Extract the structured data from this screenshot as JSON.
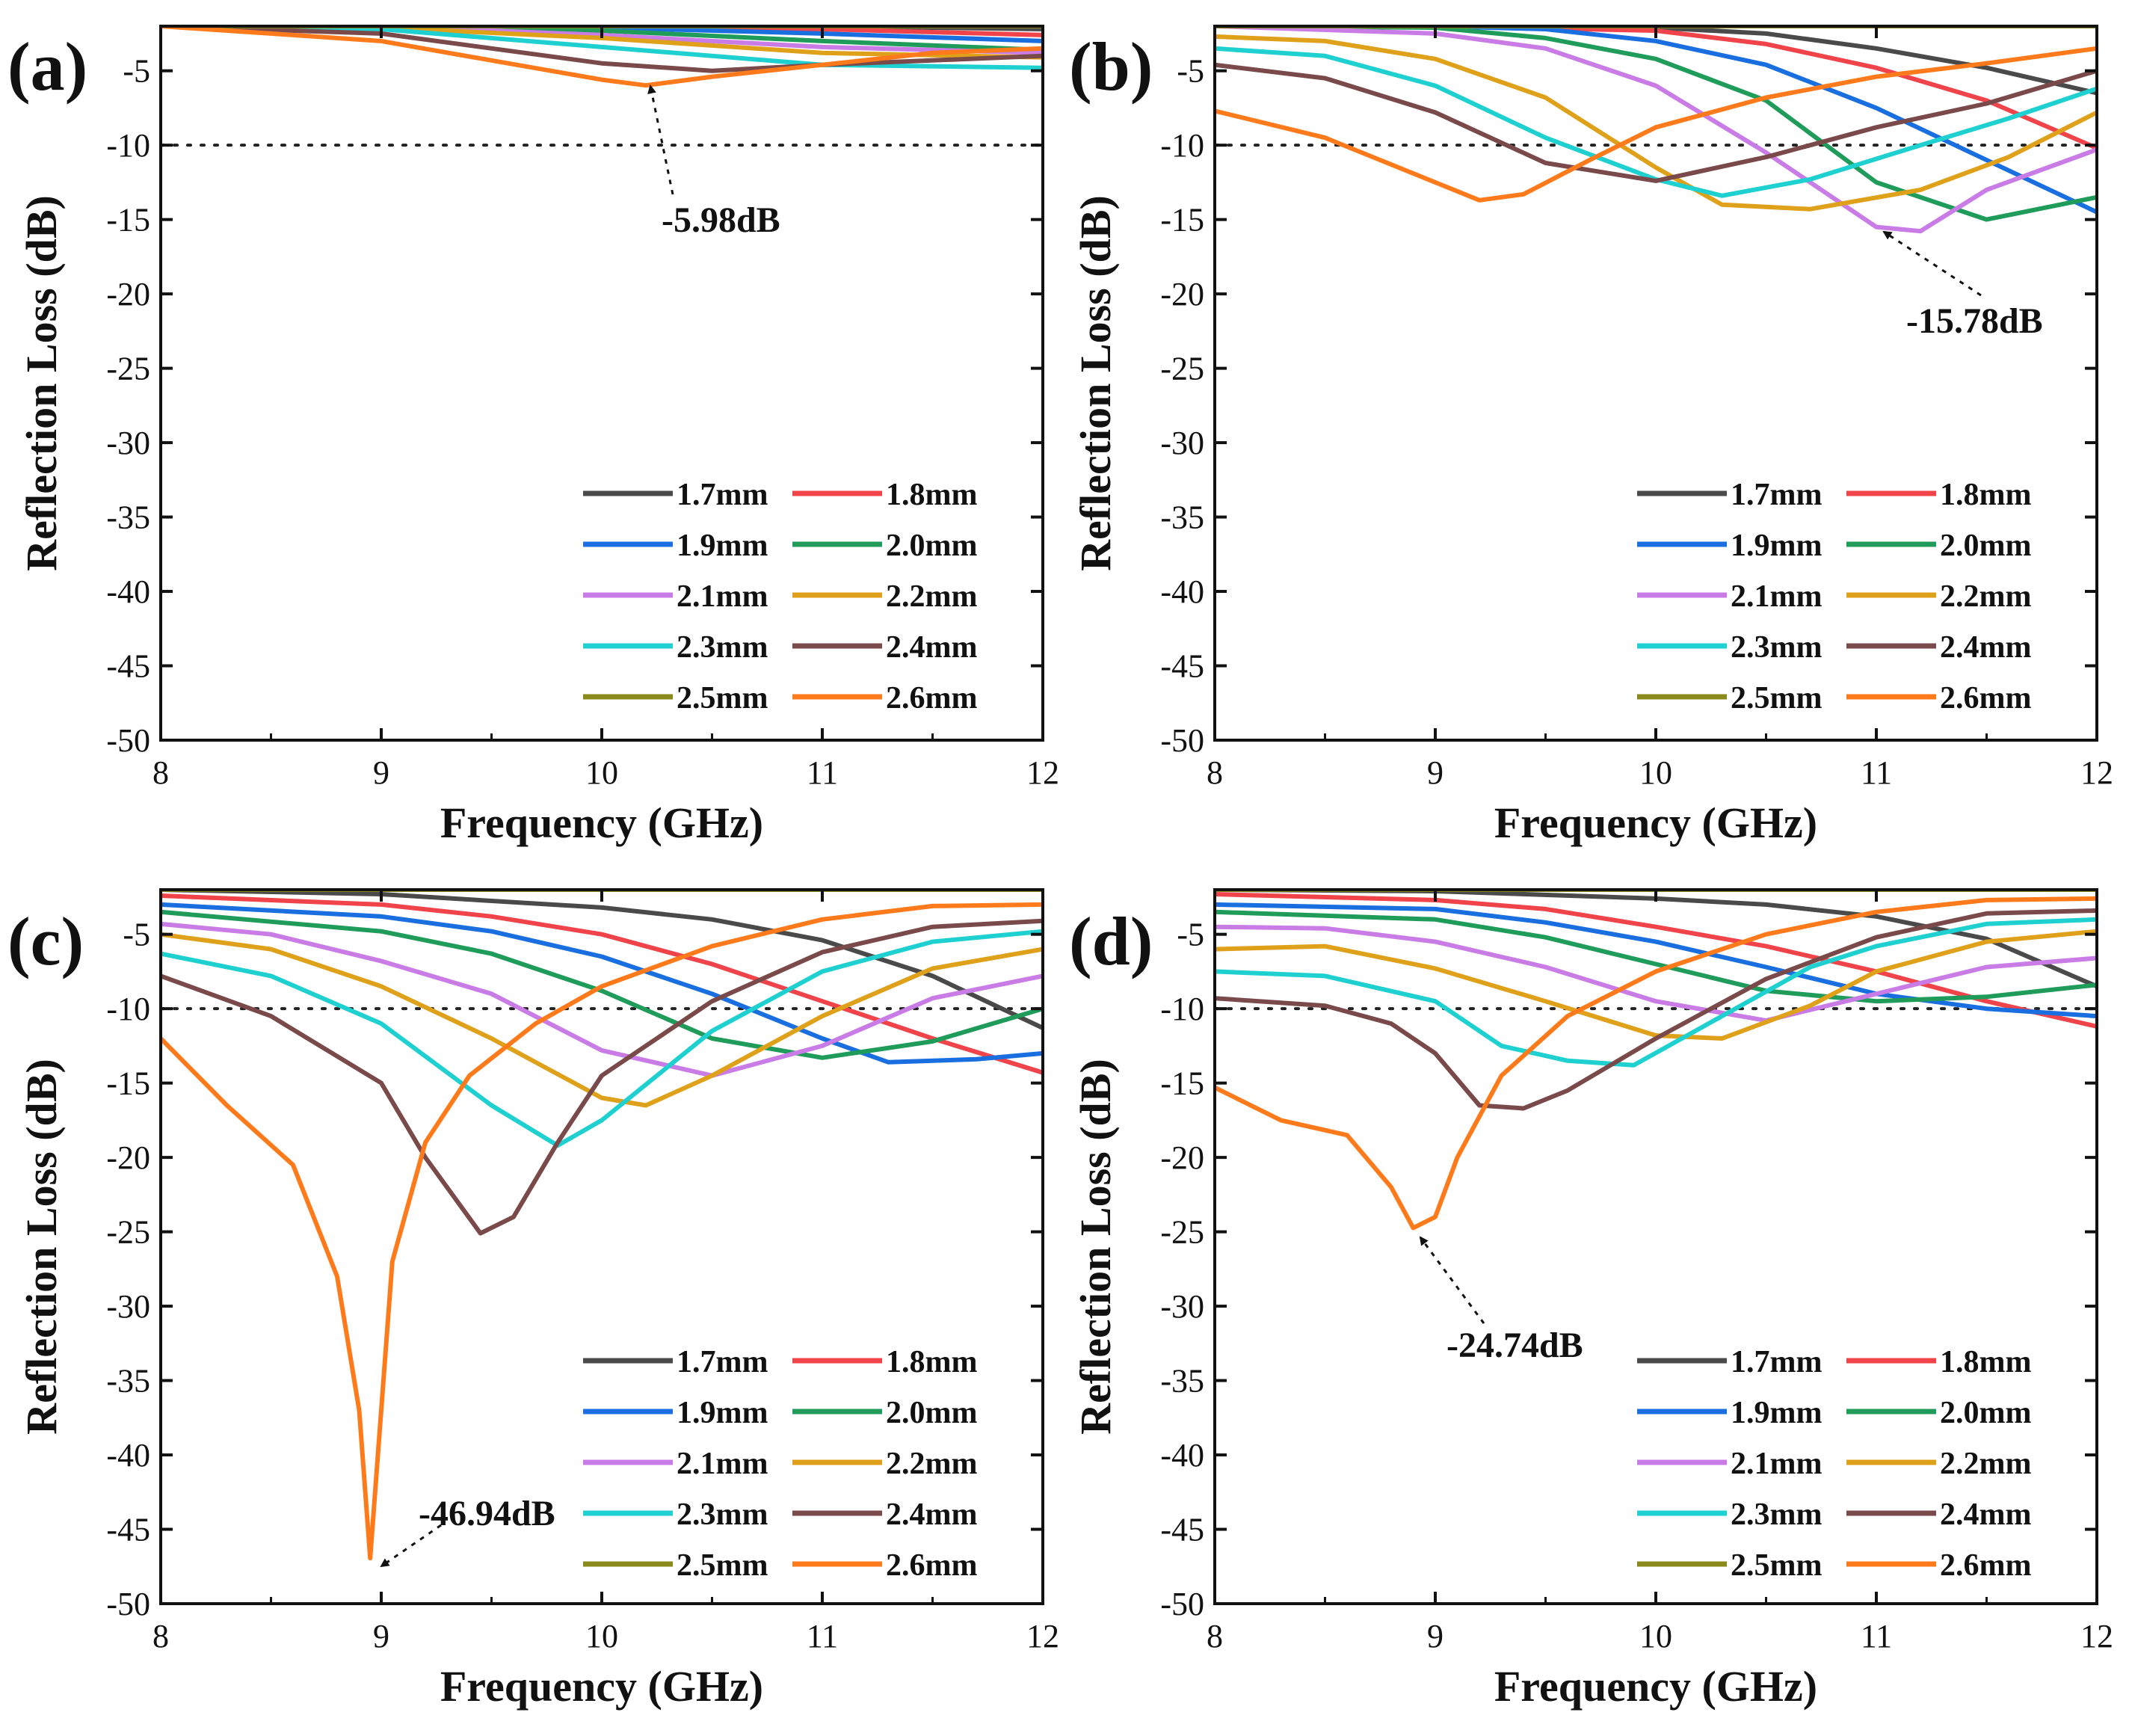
{
  "figure": {
    "colors": {
      "1.7mm": "#4a4a4a",
      "1.8mm": "#f0434a",
      "1.9mm": "#1a6fe0",
      "2.0mm": "#1f9c5a",
      "2.1mm": "#c97be6",
      "2.2mm": "#e0a11a",
      "2.3mm": "#1fd0d0",
      "2.4mm": "#7a4a4a",
      "2.5mm": "#8a8a1a",
      "2.6mm": "#ff7a1a"
    }
  },
  "chart_data": [
    {
      "panel": "(a)",
      "type": "line",
      "xlabel": "Frequency (GHz)",
      "ylabel": "Reflection Loss (dB)",
      "xlim": [
        8,
        12
      ],
      "ylim": [
        -50,
        -2
      ],
      "xticks": [
        "8",
        "9",
        "10",
        "11",
        "12"
      ],
      "yticks": [
        "-5",
        "-10",
        "-15",
        "-20",
        "-25",
        "-30",
        "-35",
        "-40",
        "-45",
        "-50"
      ],
      "reference_line": -10,
      "legend_position": "bottom-right",
      "annotation": {
        "text": "-5.98dB",
        "x": 10.2,
        "y": -5.98
      },
      "series": [
        {
          "name": "1.7mm",
          "x": [
            8,
            9,
            10,
            11,
            12
          ],
          "y": [
            -2,
            -2,
            -2,
            -2,
            -2.2
          ]
        },
        {
          "name": "1.8mm",
          "x": [
            8,
            9,
            10,
            11,
            12
          ],
          "y": [
            -2,
            -2,
            -2,
            -2.2,
            -2.6
          ]
        },
        {
          "name": "1.9mm",
          "x": [
            8,
            9,
            10,
            11,
            12
          ],
          "y": [
            -2,
            -2,
            -2.1,
            -2.5,
            -3.0
          ]
        },
        {
          "name": "2.0mm",
          "x": [
            8,
            9,
            10,
            11,
            12
          ],
          "y": [
            -2,
            -2,
            -2.3,
            -3.0,
            -3.6
          ]
        },
        {
          "name": "2.1mm",
          "x": [
            8,
            9,
            10,
            11,
            12
          ],
          "y": [
            -2,
            -2,
            -2.6,
            -3.4,
            -3.8
          ]
        },
        {
          "name": "2.2mm",
          "x": [
            8,
            9,
            10,
            11,
            12
          ],
          "y": [
            -2,
            -2.1,
            -2.8,
            -3.8,
            -4.1
          ]
        },
        {
          "name": "2.3mm",
          "x": [
            8,
            9,
            10,
            11,
            12
          ],
          "y": [
            -2,
            -2.2,
            -3.4,
            -4.6,
            -4.8
          ]
        },
        {
          "name": "2.4mm",
          "x": [
            8,
            9,
            10,
            10.5,
            11,
            12
          ],
          "y": [
            -2,
            -2.5,
            -4.5,
            -5.0,
            -4.6,
            -4.0
          ]
        },
        {
          "name": "2.5mm",
          "x": [
            8,
            12
          ],
          "y": [
            -2,
            -2
          ]
        },
        {
          "name": "2.6mm",
          "x": [
            8,
            8.5,
            9,
            9.5,
            10,
            10.2,
            10.5,
            11,
            11.5,
            12
          ],
          "y": [
            -2,
            -2.5,
            -3.0,
            -4.3,
            -5.6,
            -5.98,
            -5.4,
            -4.6,
            -3.8,
            -3.5
          ]
        }
      ]
    },
    {
      "panel": "(b)",
      "type": "line",
      "xlabel": "Frequency (GHz)",
      "ylabel": "Reflection Loss (dB)",
      "xlim": [
        8,
        12
      ],
      "ylim": [
        -50,
        -2
      ],
      "xticks": [
        "8",
        "9",
        "10",
        "11",
        "12"
      ],
      "yticks": [
        "-5",
        "-10",
        "-15",
        "-20",
        "-25",
        "-30",
        "-35",
        "-40",
        "-45",
        "-50"
      ],
      "reference_line": -10,
      "legend_position": "bottom-right",
      "annotation": {
        "text": "-15.78dB",
        "x": 11.2,
        "y": -15.78
      },
      "series": [
        {
          "name": "1.7mm",
          "x": [
            8,
            9,
            10,
            10.5,
            11,
            11.5,
            12
          ],
          "y": [
            -2,
            -2,
            -2.1,
            -2.5,
            -3.5,
            -4.8,
            -6.5
          ]
        },
        {
          "name": "1.8mm",
          "x": [
            8,
            9,
            10,
            10.5,
            11,
            11.5,
            12
          ],
          "y": [
            -2,
            -2,
            -2.3,
            -3.2,
            -4.8,
            -7.0,
            -10.2
          ]
        },
        {
          "name": "1.9mm",
          "x": [
            8,
            9,
            9.5,
            10,
            10.5,
            11,
            11.5,
            12
          ],
          "y": [
            -2,
            -2,
            -2.2,
            -3.0,
            -4.6,
            -7.5,
            -11.0,
            -14.5
          ]
        },
        {
          "name": "2.0mm",
          "x": [
            8,
            9,
            9.5,
            10,
            10.5,
            11,
            11.5,
            12
          ],
          "y": [
            -2,
            -2.1,
            -2.8,
            -4.2,
            -7.0,
            -12.5,
            -15.0,
            -13.5
          ]
        },
        {
          "name": "2.1mm",
          "x": [
            8,
            9,
            9.5,
            10,
            10.5,
            11,
            11.2,
            11.5,
            12
          ],
          "y": [
            -2,
            -2.5,
            -3.5,
            -6.0,
            -10.5,
            -15.5,
            -15.78,
            -13.0,
            -10.3
          ]
        },
        {
          "name": "2.2mm",
          "x": [
            8,
            8.5,
            9,
            9.5,
            10,
            10.3,
            10.7,
            11.2,
            11.6,
            12
          ],
          "y": [
            -2.7,
            -3.0,
            -4.2,
            -6.8,
            -11.5,
            -14.0,
            -14.3,
            -13.0,
            -10.8,
            -7.8
          ]
        },
        {
          "name": "2.3mm",
          "x": [
            8,
            8.5,
            9,
            9.5,
            10,
            10.3,
            10.7,
            11.2,
            11.6,
            12
          ],
          "y": [
            -3.5,
            -4.0,
            -6.0,
            -9.5,
            -12.3,
            -13.4,
            -12.3,
            -10.0,
            -8.2,
            -6.2
          ]
        },
        {
          "name": "2.4mm",
          "x": [
            8,
            8.5,
            9,
            9.5,
            10,
            10.5,
            11,
            11.5,
            12
          ],
          "y": [
            -4.6,
            -5.5,
            -7.8,
            -11.2,
            -12.4,
            -10.8,
            -8.8,
            -7.2,
            -5.0
          ]
        },
        {
          "name": "2.5mm",
          "x": [
            8,
            12
          ],
          "y": [
            -2,
            -2
          ]
        },
        {
          "name": "2.6mm",
          "x": [
            8,
            8.5,
            9,
            9.2,
            9.4,
            9.7,
            10,
            10.5,
            11,
            11.5,
            12
          ],
          "y": [
            -7.7,
            -9.5,
            -12.5,
            -13.7,
            -13.3,
            -11.0,
            -8.8,
            -6.8,
            -5.4,
            -4.5,
            -3.5
          ]
        }
      ]
    },
    {
      "panel": "(c)",
      "type": "line",
      "xlabel": "Frequency (GHz)",
      "ylabel": "Reflection Loss (dB)",
      "xlim": [
        8,
        12
      ],
      "ylim": [
        -50,
        -2
      ],
      "xticks": [
        "8",
        "9",
        "10",
        "11",
        "12"
      ],
      "yticks": [
        "-5",
        "-10",
        "-15",
        "-20",
        "-25",
        "-30",
        "-35",
        "-40",
        "-45",
        "-50"
      ],
      "reference_line": -10,
      "legend_position": "bottom-right",
      "annotation": {
        "text": "-46.94dB",
        "x": 8.95,
        "y": -46.94
      },
      "series": [
        {
          "name": "1.7mm",
          "x": [
            8,
            9,
            10,
            10.5,
            11,
            11.5,
            12
          ],
          "y": [
            -2,
            -2.3,
            -3.2,
            -4.0,
            -5.4,
            -7.8,
            -11.3
          ]
        },
        {
          "name": "1.8mm",
          "x": [
            8,
            9,
            9.5,
            10,
            10.5,
            11,
            11.5,
            12
          ],
          "y": [
            -2.4,
            -3.0,
            -3.8,
            -5.0,
            -7.0,
            -9.5,
            -12.0,
            -14.3
          ]
        },
        {
          "name": "1.9mm",
          "x": [
            8,
            9,
            9.5,
            10,
            10.5,
            11,
            11.3,
            11.7,
            12
          ],
          "y": [
            -3.0,
            -3.8,
            -4.8,
            -6.5,
            -9.0,
            -12.0,
            -13.6,
            -13.4,
            -13.0
          ]
        },
        {
          "name": "2.0mm",
          "x": [
            8,
            9,
            9.5,
            10,
            10.5,
            11,
            11.5,
            12
          ],
          "y": [
            -3.5,
            -4.8,
            -6.3,
            -8.8,
            -12.0,
            -13.3,
            -12.2,
            -10.0
          ]
        },
        {
          "name": "2.1mm",
          "x": [
            8,
            8.5,
            9,
            9.5,
            10,
            10.5,
            11,
            11.5,
            12
          ],
          "y": [
            -4.3,
            -5.0,
            -6.8,
            -9.0,
            -12.8,
            -14.5,
            -12.5,
            -9.3,
            -7.8
          ]
        },
        {
          "name": "2.2mm",
          "x": [
            8,
            8.5,
            9,
            9.5,
            10,
            10.2,
            10.5,
            11,
            11.5,
            12
          ],
          "y": [
            -5.0,
            -6.0,
            -8.5,
            -12.0,
            -16.0,
            -16.5,
            -14.5,
            -10.5,
            -7.3,
            -6.0
          ]
        },
        {
          "name": "2.3mm",
          "x": [
            8,
            8.5,
            9,
            9.5,
            9.8,
            10,
            10.5,
            11,
            11.5,
            12
          ],
          "y": [
            -6.3,
            -7.8,
            -11.0,
            -16.5,
            -19.2,
            -17.5,
            -11.5,
            -7.5,
            -5.5,
            -4.8
          ]
        },
        {
          "name": "2.4mm",
          "x": [
            8,
            8.5,
            9,
            9.2,
            9.45,
            9.6,
            9.8,
            10,
            10.5,
            11,
            11.5,
            12
          ],
          "y": [
            -7.8,
            -10.5,
            -15.0,
            -20.0,
            -25.1,
            -24.0,
            -19.0,
            -14.5,
            -9.5,
            -6.2,
            -4.5,
            -4.1
          ]
        },
        {
          "name": "2.5mm",
          "x": [
            8,
            12
          ],
          "y": [
            -2,
            -2
          ]
        },
        {
          "name": "2.6mm",
          "x": [
            8,
            8.3,
            8.6,
            8.8,
            8.9,
            8.95,
            9.05,
            9.2,
            9.4,
            9.7,
            10,
            10.5,
            11,
            11.5,
            12
          ],
          "y": [
            -12.0,
            -16.5,
            -20.5,
            -28.0,
            -37.0,
            -46.94,
            -27.0,
            -19.0,
            -14.5,
            -11.0,
            -8.5,
            -5.8,
            -4.0,
            -3.1,
            -3.0
          ]
        }
      ]
    },
    {
      "panel": "(d)",
      "type": "line",
      "xlabel": "Frequency (GHz)",
      "ylabel": "Reflection Loss (dB)",
      "xlim": [
        8,
        12
      ],
      "ylim": [
        -50,
        -2
      ],
      "xticks": [
        "8",
        "9",
        "10",
        "11",
        "12"
      ],
      "yticks": [
        "-5",
        "-10",
        "-15",
        "-20",
        "-25",
        "-30",
        "-35",
        "-40",
        "-45",
        "-50"
      ],
      "reference_line": -10,
      "legend_position": "bottom-right",
      "annotation": {
        "text": "-24.74dB",
        "x": 8.9,
        "y": -24.74
      },
      "series": [
        {
          "name": "1.7mm",
          "x": [
            8,
            9,
            10,
            10.5,
            11,
            11.5,
            12
          ],
          "y": [
            -2,
            -2.1,
            -2.6,
            -3.0,
            -3.8,
            -5.3,
            -8.5
          ]
        },
        {
          "name": "1.8mm",
          "x": [
            8,
            9,
            9.5,
            10,
            10.5,
            11,
            11.5,
            12
          ],
          "y": [
            -2.3,
            -2.7,
            -3.3,
            -4.5,
            -5.8,
            -7.5,
            -9.5,
            -11.2
          ]
        },
        {
          "name": "1.9mm",
          "x": [
            8,
            9,
            9.5,
            10,
            10.5,
            11,
            11.5,
            12
          ],
          "y": [
            -3.0,
            -3.3,
            -4.2,
            -5.5,
            -7.2,
            -9.0,
            -10.0,
            -10.5
          ]
        },
        {
          "name": "2.0mm",
          "x": [
            8,
            9,
            9.5,
            10,
            10.5,
            11,
            11.5,
            12
          ],
          "y": [
            -3.5,
            -4.0,
            -5.2,
            -7.0,
            -8.8,
            -9.5,
            -9.2,
            -8.4
          ]
        },
        {
          "name": "2.1mm",
          "x": [
            8,
            8.5,
            9,
            9.5,
            10,
            10.5,
            11,
            11.5,
            12
          ],
          "y": [
            -4.5,
            -4.6,
            -5.5,
            -7.2,
            -9.5,
            -10.8,
            -9.0,
            -7.2,
            -6.6
          ]
        },
        {
          "name": "2.2mm",
          "x": [
            8,
            8.5,
            9,
            9.5,
            10,
            10.3,
            10.7,
            11,
            11.5,
            12
          ],
          "y": [
            -6.0,
            -5.8,
            -7.3,
            -9.5,
            -11.8,
            -12.0,
            -9.8,
            -7.5,
            -5.5,
            -4.8
          ]
        },
        {
          "name": "2.3mm",
          "x": [
            8,
            8.5,
            9,
            9.3,
            9.6,
            9.9,
            10.3,
            10.7,
            11,
            11.5,
            12
          ],
          "y": [
            -7.5,
            -7.8,
            -9.5,
            -12.5,
            -13.5,
            -13.8,
            -10.5,
            -7.2,
            -5.8,
            -4.3,
            -4.0
          ]
        },
        {
          "name": "2.4mm",
          "x": [
            8,
            8.5,
            8.8,
            9,
            9.2,
            9.4,
            9.6,
            10,
            10.5,
            11,
            11.5,
            12
          ],
          "y": [
            -9.3,
            -9.8,
            -11.0,
            -13.0,
            -16.5,
            -16.7,
            -15.5,
            -12.0,
            -8.0,
            -5.2,
            -3.6,
            -3.4
          ]
        },
        {
          "name": "2.5mm",
          "x": [
            8,
            12
          ],
          "y": [
            -2,
            -2
          ]
        },
        {
          "name": "2.6mm",
          "x": [
            8,
            8.3,
            8.6,
            8.8,
            8.9,
            9.0,
            9.1,
            9.3,
            9.6,
            10,
            10.5,
            11,
            11.5,
            12
          ],
          "y": [
            -15.3,
            -17.5,
            -18.5,
            -22.0,
            -24.74,
            -24.0,
            -20.0,
            -14.5,
            -10.5,
            -7.5,
            -5.0,
            -3.5,
            -2.7,
            -2.6
          ]
        }
      ]
    }
  ]
}
